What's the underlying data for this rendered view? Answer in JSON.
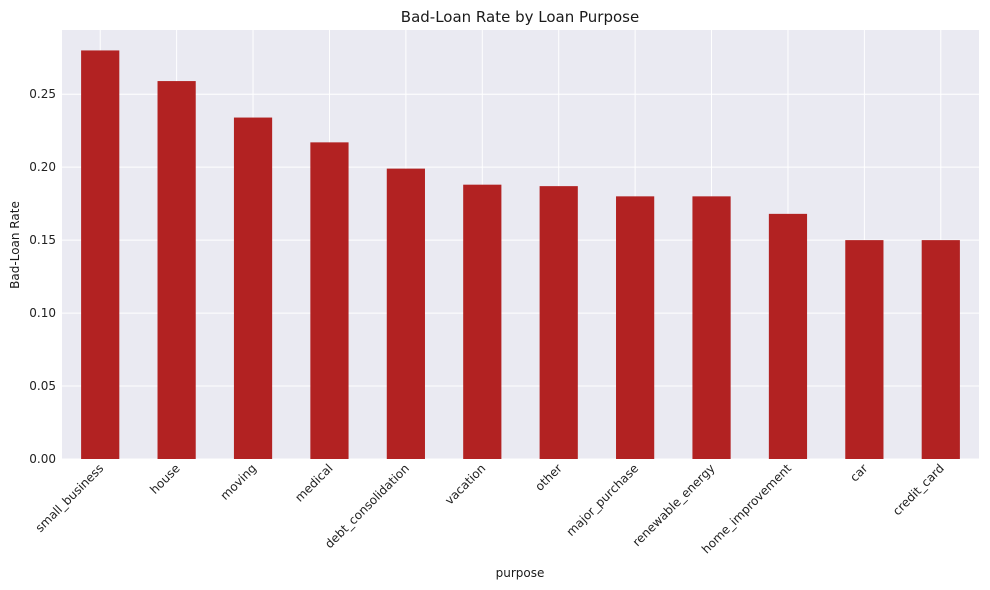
{
  "chart_data": {
    "type": "bar",
    "title": "Bad-Loan Rate by Loan Purpose",
    "xlabel": "purpose",
    "ylabel": "Bad-Loan Rate",
    "categories": [
      "small_business",
      "house",
      "moving",
      "medical",
      "debt_consolidation",
      "vacation",
      "other",
      "major_purchase",
      "renewable_energy",
      "home_improvement",
      "car",
      "credit_card"
    ],
    "values": [
      0.28,
      0.259,
      0.234,
      0.217,
      0.199,
      0.188,
      0.187,
      0.18,
      0.18,
      0.168,
      0.15,
      0.15
    ],
    "ylim": [
      0,
      0.294
    ],
    "yticks": [
      0.0,
      0.05,
      0.1,
      0.15,
      0.2,
      0.25
    ],
    "ytick_labels": [
      "0.00",
      "0.05",
      "0.10",
      "0.15",
      "0.20",
      "0.25"
    ],
    "grid": true,
    "bar_color": "#b22222",
    "plot_background": "#eaeaf2",
    "grid_color": "#ffffff"
  }
}
